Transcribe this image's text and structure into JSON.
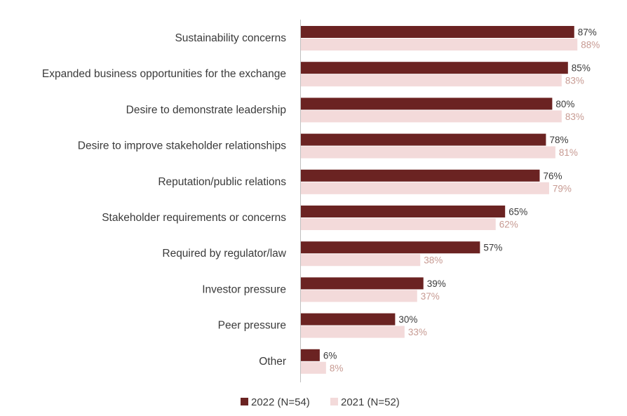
{
  "chart_data": {
    "type": "bar",
    "orientation": "horizontal",
    "categories": [
      "Sustainability concerns",
      "Expanded business opportunities for the exchange",
      "Desire to demonstrate leadership",
      "Desire to improve stakeholder relationships",
      "Reputation/public relations",
      "Stakeholder requirements or concerns",
      "Required by regulator/law",
      "Investor pressure",
      "Peer pressure",
      "Other"
    ],
    "series": [
      {
        "name": "2022 (N=54)",
        "color": "#6b2322",
        "values": [
          87,
          85,
          80,
          78,
          76,
          65,
          57,
          39,
          30,
          6
        ],
        "labels": [
          "87%",
          "85%",
          "80%",
          "78%",
          "76%",
          "65%",
          "57%",
          "39%",
          "30%",
          "6%"
        ]
      },
      {
        "name": "2021 (N=52)",
        "color": "#f3dada",
        "label_color": "#c79a92",
        "values": [
          88,
          83,
          83,
          81,
          79,
          62,
          38,
          37,
          33,
          8
        ],
        "labels": [
          "88%",
          "83%",
          "83%",
          "81%",
          "79%",
          "62%",
          "38%",
          "37%",
          "33%",
          "8%"
        ]
      }
    ],
    "xlim": [
      0,
      100
    ],
    "grid": false,
    "legend_position": "bottom"
  }
}
